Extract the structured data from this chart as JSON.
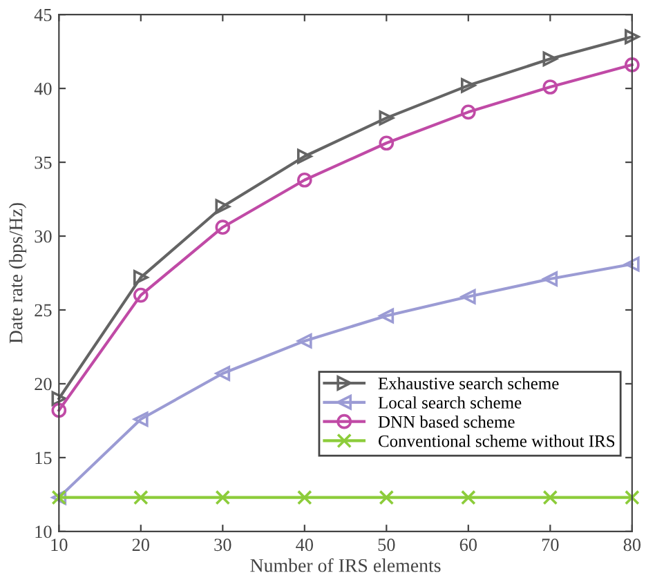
{
  "chart_data": {
    "type": "line",
    "xlabel": "Number of IRS elements",
    "ylabel": "Date rate (bps/Hz)",
    "x": [
      10,
      20,
      30,
      40,
      50,
      60,
      70,
      80
    ],
    "series": [
      {
        "name": "Exhaustive search scheme",
        "color": "#646464",
        "marker": "triangle-right",
        "values": [
          19.0,
          27.2,
          32.0,
          35.4,
          38.0,
          40.2,
          42.0,
          43.5
        ]
      },
      {
        "name": "Local search scheme",
        "color": "#9b9bd4",
        "marker": "triangle-left",
        "values": [
          12.3,
          17.6,
          20.7,
          22.9,
          24.6,
          25.9,
          27.1,
          28.1
        ]
      },
      {
        "name": "DNN based scheme",
        "color": "#c04aa6",
        "marker": "circle",
        "values": [
          18.2,
          26.0,
          30.6,
          33.8,
          36.3,
          38.4,
          40.1,
          41.6
        ]
      },
      {
        "name": "Conventional scheme without IRS",
        "color": "#8ccc3a",
        "marker": "cross",
        "values": [
          12.3,
          12.3,
          12.3,
          12.3,
          12.3,
          12.3,
          12.3,
          12.3
        ]
      }
    ],
    "xlim": [
      10,
      80
    ],
    "xticks": [
      10,
      20,
      30,
      40,
      50,
      60,
      70,
      80
    ],
    "ylim": [
      10,
      45
    ],
    "yticks": [
      10,
      15,
      20,
      25,
      30,
      35,
      40,
      45
    ],
    "grid": false,
    "legend": "right",
    "line_style": "solid"
  }
}
